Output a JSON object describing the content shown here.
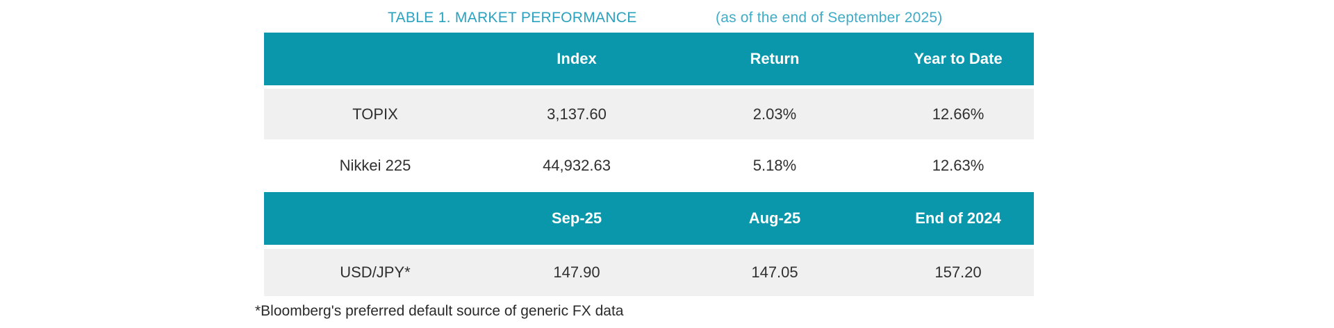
{
  "title": {
    "main": "TABLE 1. MARKET PERFORMANCE",
    "subtitle": "(as of the end of September 2025)"
  },
  "colors": {
    "header_background": "#0a97ab",
    "shaded_row_background": "#f0f0f0",
    "title_text": "#2aa2bf",
    "subtitle_text": "#3fabc7",
    "header_text": "#ffffff",
    "body_text": "#2f2f2f"
  },
  "footnote": "*Bloomberg's preferred default source of generic FX data",
  "chart_data": [
    {
      "type": "table",
      "title": "TABLE 1. MARKET PERFORMANCE (as of the end of September 2025)",
      "columns": [
        "",
        "Index",
        "Return",
        "Year to Date"
      ],
      "rows": [
        [
          "TOPIX",
          "3,137.60",
          "2.03%",
          "12.66%"
        ],
        [
          "Nikkei 225",
          "44,932.63",
          "5.18%",
          "12.63%"
        ]
      ]
    },
    {
      "type": "table",
      "title": "FX section",
      "columns": [
        "",
        "Sep-25",
        "Aug-25",
        "End of 2024"
      ],
      "rows": [
        [
          "USD/JPY*",
          "147.90",
          "147.05",
          "157.20"
        ]
      ]
    }
  ]
}
